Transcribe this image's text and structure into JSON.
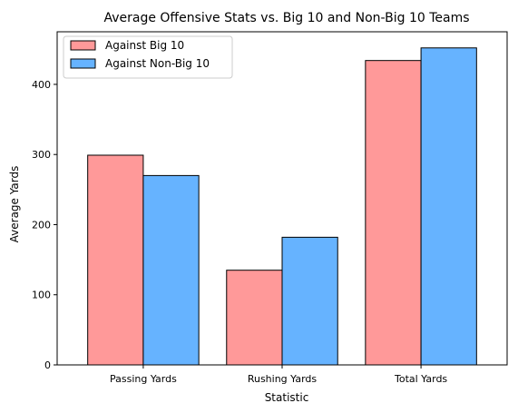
{
  "chart_data": {
    "type": "bar",
    "title": "Average Offensive Stats vs. Big 10 and Non-Big 10 Teams",
    "xlabel": "Statistic",
    "ylabel": "Average Yards",
    "categories": [
      "Passing Yards",
      "Rushing Yards",
      "Total Yards"
    ],
    "series": [
      {
        "name": "Against Big 10",
        "values": [
          299,
          135,
          434
        ],
        "color": "#ff9999"
      },
      {
        "name": "Against Non-Big 10",
        "values": [
          270,
          182,
          452
        ],
        "color": "#66b3ff"
      }
    ],
    "ylim": [
      0,
      475
    ],
    "yticks": [
      0,
      100,
      200,
      300,
      400
    ],
    "grid": false,
    "legend_position": "top-left"
  }
}
